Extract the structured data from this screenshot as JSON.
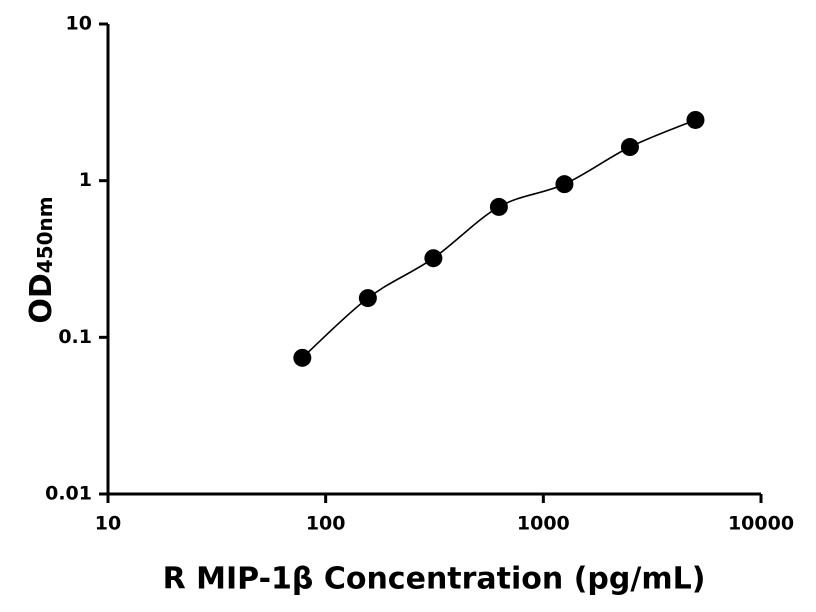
{
  "chart_data": {
    "type": "scatter",
    "x_label": "R MIP-1β Concentration (pg/mL)",
    "y_label": "OD",
    "y_label_subscript": "450nm",
    "x": [
      78.125,
      156.25,
      312.5,
      625,
      1250,
      2500,
      5000
    ],
    "values": [
      0.074,
      0.178,
      0.32,
      0.68,
      0.95,
      1.64,
      2.44
    ],
    "color": "#000000",
    "xlim": [
      10,
      10000
    ],
    "xticks": [
      10,
      100,
      1000,
      10000
    ],
    "ylim": [
      0.01,
      10
    ],
    "yticks": [
      0.01,
      0.1,
      1,
      10
    ],
    "xscale": "log",
    "yscale": "log",
    "fit_curve": true
  }
}
